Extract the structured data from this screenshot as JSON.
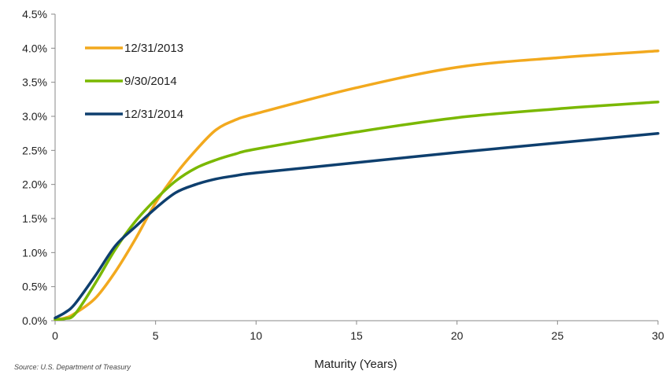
{
  "chart_data": {
    "type": "line",
    "title": "",
    "xlabel": "Maturity (Years)",
    "ylabel": "",
    "xlim": [
      0,
      30
    ],
    "ylim": [
      0,
      4.5
    ],
    "x_ticks": [
      0,
      5,
      10,
      15,
      20,
      25,
      30
    ],
    "y_ticks": [
      0,
      0.5,
      1.0,
      1.5,
      2.0,
      2.5,
      3.0,
      3.5,
      4.0,
      4.5
    ],
    "y_tick_labels": [
      "0.0%",
      "0.5%",
      "1.0%",
      "1.5%",
      "2.0%",
      "2.5%",
      "3.0%",
      "3.5%",
      "4.0%",
      "4.5%"
    ],
    "grid": false,
    "legend_position": "top-left",
    "source_text": "Source: U.S. Department of Treasury",
    "series": [
      {
        "name": "12/31/2013",
        "color": "#F2A91E",
        "points": [
          [
            0,
            0.02
          ],
          [
            0.5,
            0.04
          ],
          [
            1,
            0.11
          ],
          [
            2,
            0.33
          ],
          [
            3,
            0.72
          ],
          [
            4,
            1.2
          ],
          [
            5,
            1.73
          ],
          [
            6,
            2.15
          ],
          [
            7,
            2.5
          ],
          [
            8,
            2.8
          ],
          [
            9,
            2.95
          ],
          [
            10,
            3.04
          ],
          [
            15,
            3.42
          ],
          [
            20,
            3.72
          ],
          [
            25,
            3.86
          ],
          [
            30,
            3.96
          ]
        ]
      },
      {
        "name": "9/30/2014",
        "color": "#7AB800",
        "points": [
          [
            0,
            0.02
          ],
          [
            0.5,
            0.03
          ],
          [
            1,
            0.1
          ],
          [
            2,
            0.55
          ],
          [
            3,
            1.05
          ],
          [
            4,
            1.46
          ],
          [
            5,
            1.78
          ],
          [
            6,
            2.05
          ],
          [
            7,
            2.24
          ],
          [
            8,
            2.36
          ],
          [
            9,
            2.45
          ],
          [
            10,
            2.52
          ],
          [
            15,
            2.77
          ],
          [
            20,
            2.98
          ],
          [
            25,
            3.11
          ],
          [
            30,
            3.21
          ]
        ]
      },
      {
        "name": "12/31/2014",
        "color": "#0E3F6E",
        "points": [
          [
            0,
            0.04
          ],
          [
            0.5,
            0.12
          ],
          [
            1,
            0.25
          ],
          [
            2,
            0.66
          ],
          [
            3,
            1.1
          ],
          [
            4,
            1.38
          ],
          [
            5,
            1.65
          ],
          [
            6,
            1.88
          ],
          [
            7,
            2.0
          ],
          [
            8,
            2.08
          ],
          [
            9,
            2.13
          ],
          [
            10,
            2.17
          ],
          [
            15,
            2.32
          ],
          [
            20,
            2.47
          ],
          [
            25,
            2.61
          ],
          [
            30,
            2.75
          ]
        ]
      }
    ]
  }
}
